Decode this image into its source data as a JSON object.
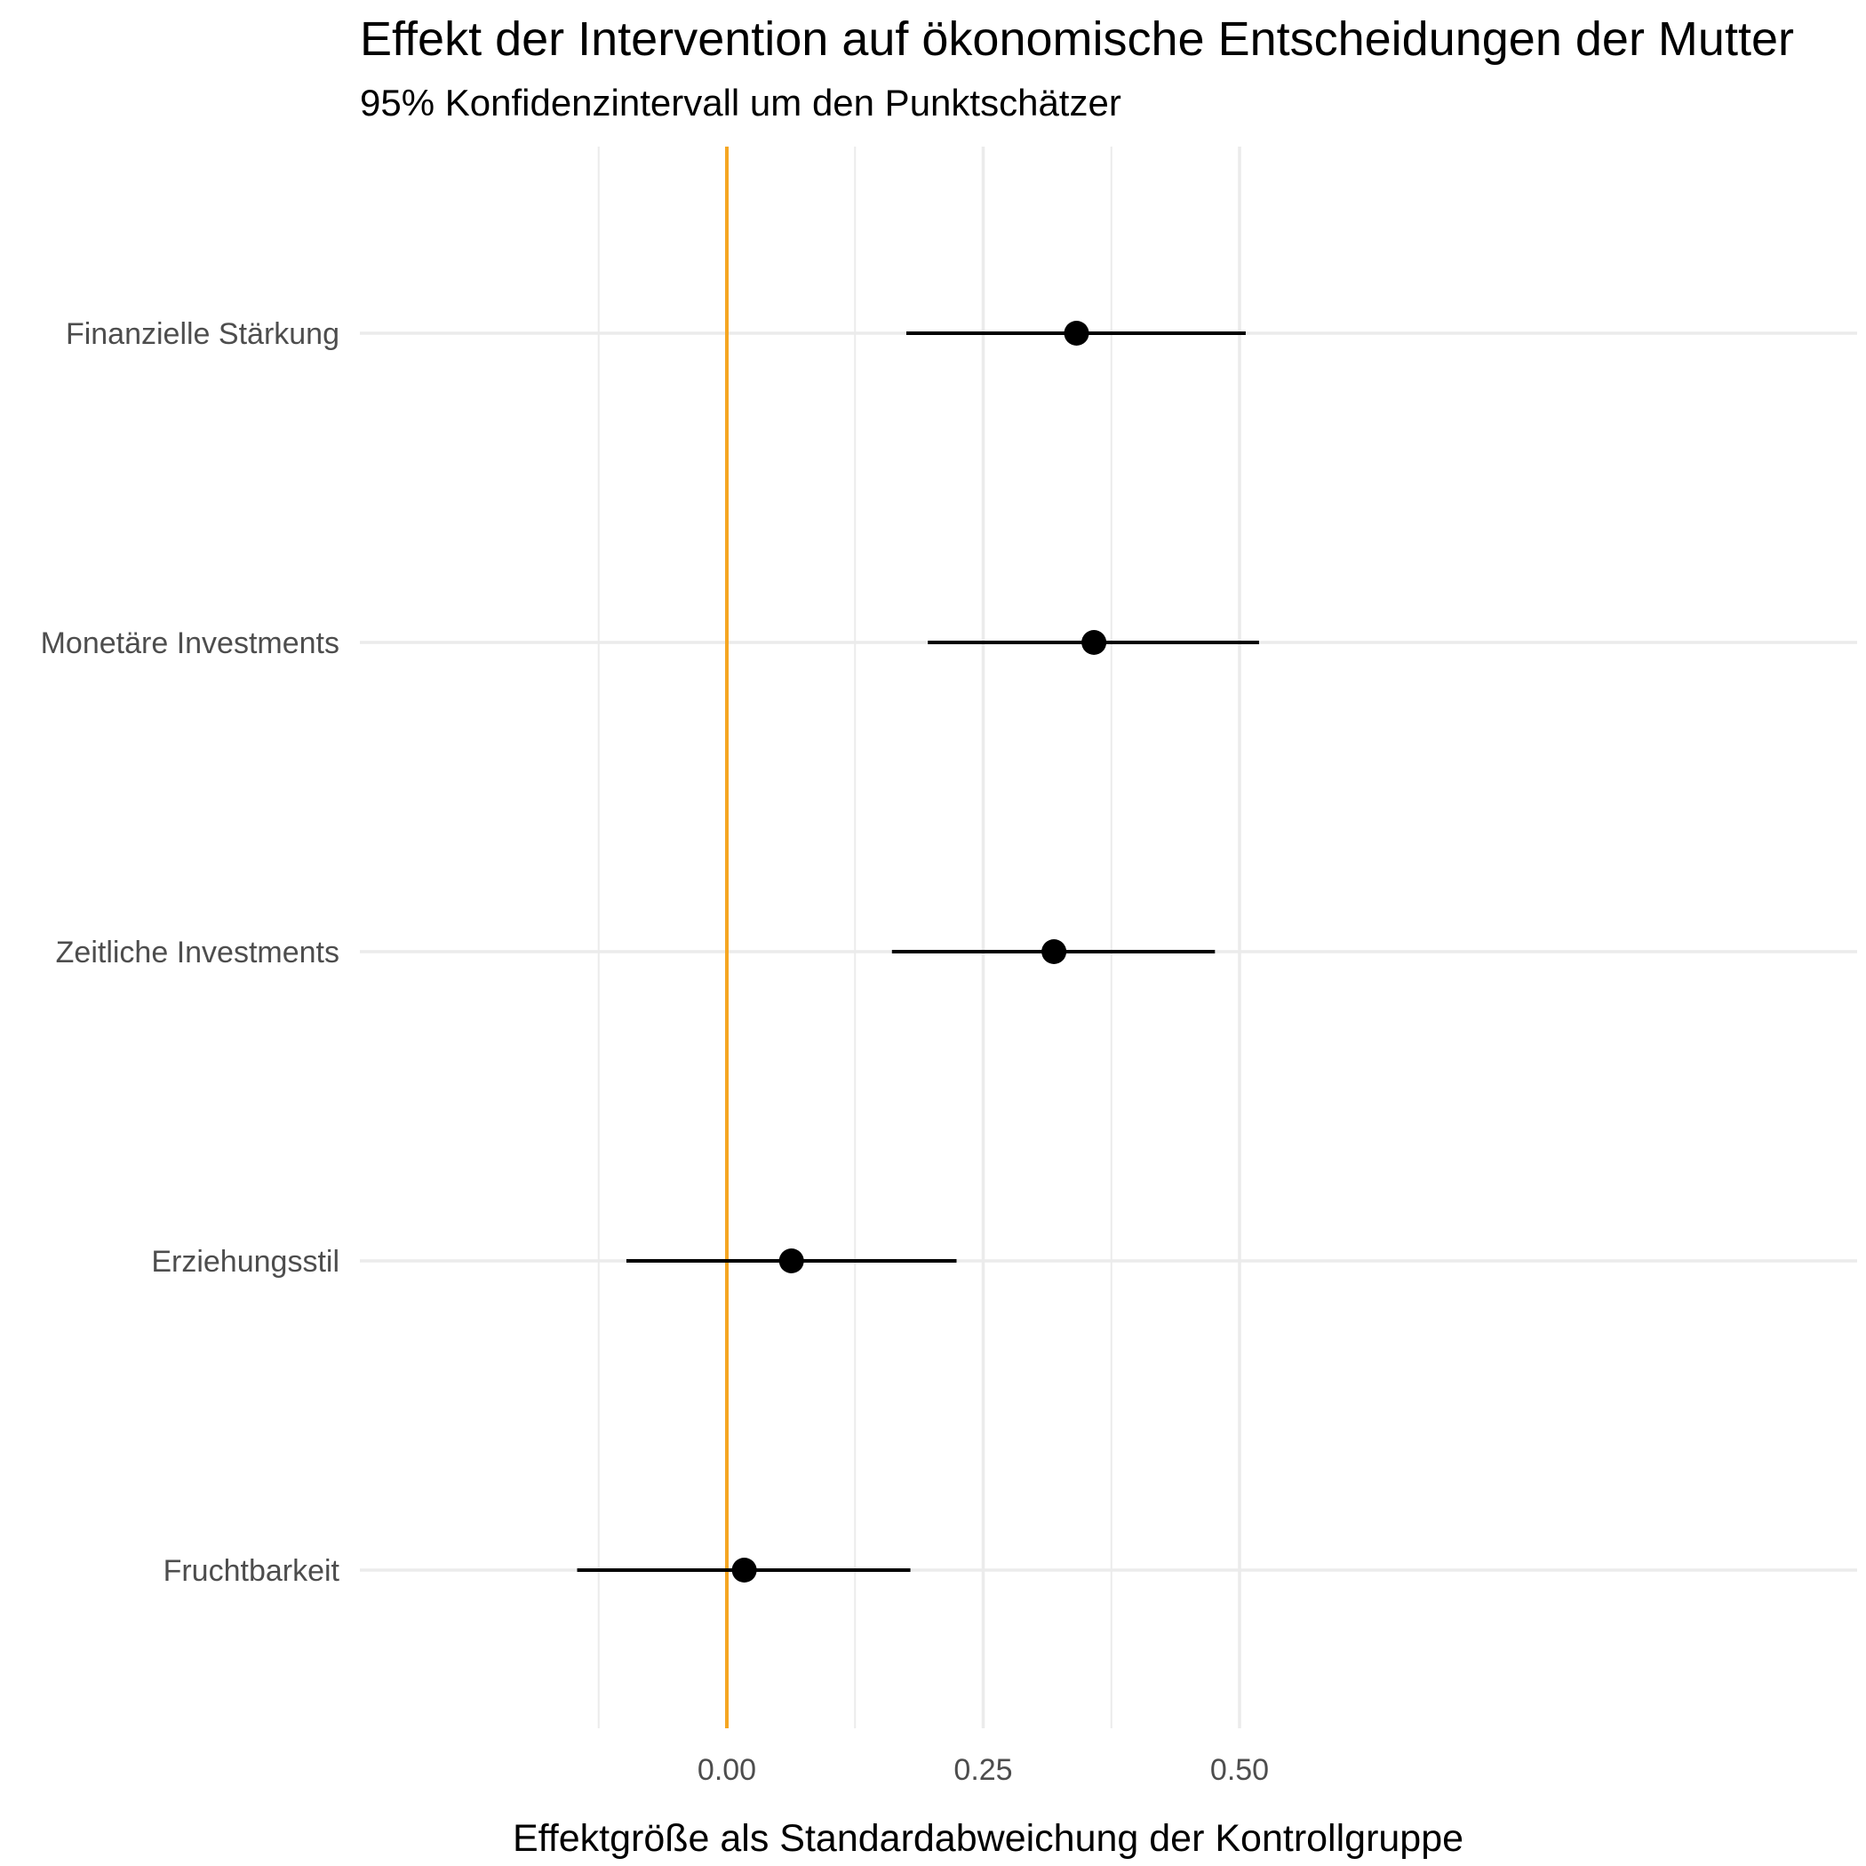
{
  "chart_data": {
    "type": "scatter",
    "title": "Effekt der Intervention auf ökonomische Entscheidungen der Mutter",
    "subtitle": "95% Konfidenzintervall um den Punktschätzer",
    "xlabel": "Effektgröße als Standardabweichung der Kontrollgruppe",
    "ylabel": "",
    "xlim": [
      -0.18,
      0.55
    ],
    "x_ticks": [
      0.0,
      0.25,
      0.5
    ],
    "x_tick_labels": [
      "0.00",
      "0.25",
      "0.50"
    ],
    "x_minor_ticks": [
      -0.125,
      0.125,
      0.375
    ],
    "grid": true,
    "reference_line": {
      "x": 0.0,
      "color": "#f5a623"
    },
    "point_color": "#000000",
    "categories": [
      "Finanzielle Stärkung",
      "Monetäre Investments",
      "Zeitliche Investments",
      "Erziehungsstil",
      "Fruchtbarkeit"
    ],
    "estimates": [
      0.341,
      0.358,
      0.319,
      0.063,
      0.017
    ],
    "ci_lower": [
      0.175,
      0.196,
      0.161,
      -0.098,
      -0.146
    ],
    "ci_upper": [
      0.506,
      0.519,
      0.476,
      0.224,
      0.179
    ]
  }
}
